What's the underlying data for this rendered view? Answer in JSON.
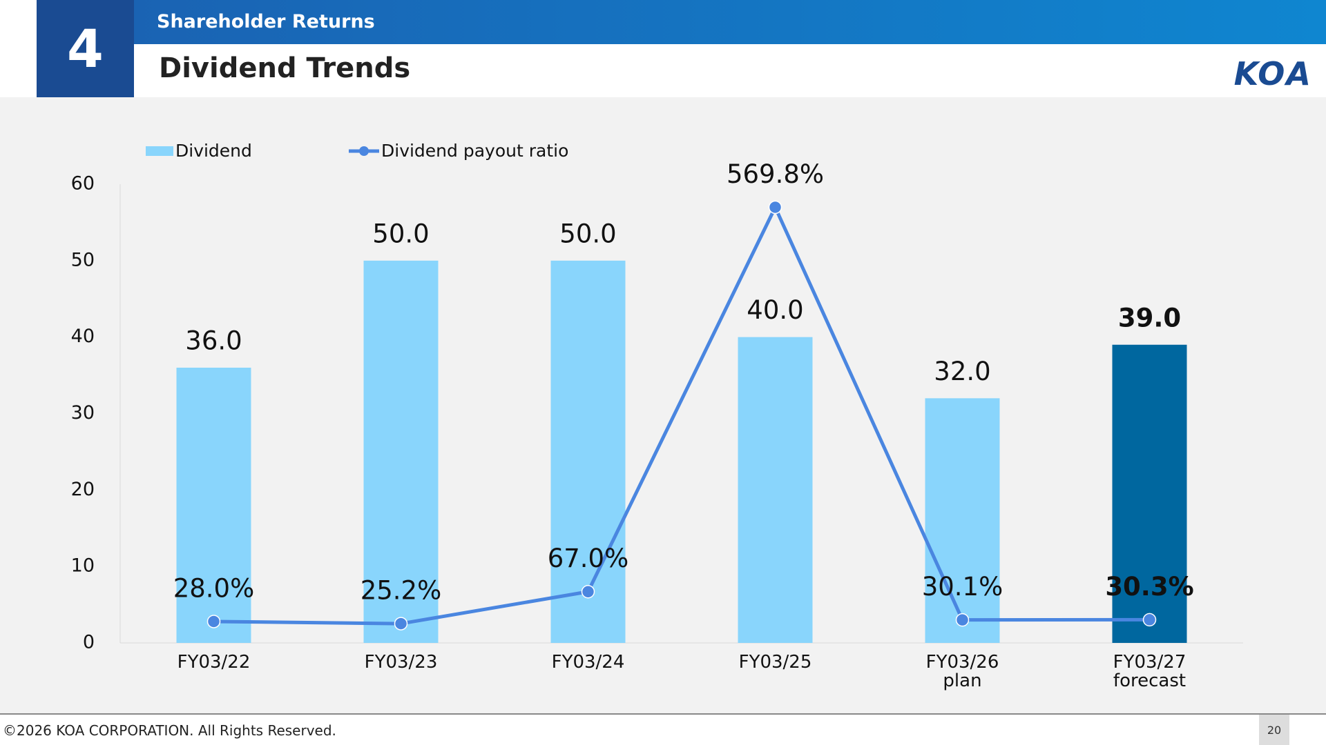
{
  "header": {
    "number": "4",
    "section": "Shareholder Returns",
    "title": "Dividend Trends",
    "logo": "KOA"
  },
  "footer": {
    "copyright": "©2026 KOA CORPORATION. All Rights Reserved.",
    "page": "20"
  },
  "chart_data": {
    "type": "bar-line",
    "categories": [
      "FY03/22",
      "FY03/23",
      "FY03/24",
      "FY03/25",
      "FY03/26\nplan",
      "FY03/27\nforecast"
    ],
    "series": [
      {
        "name": "Dividend",
        "type": "bar",
        "color": "#89d5fc",
        "colors": [
          "#89d5fc",
          "#89d5fc",
          "#89d5fc",
          "#89d5fc",
          "#89d5fc",
          "#00679f"
        ],
        "values": [
          36.0,
          50.0,
          50.0,
          40.0,
          32.0,
          39.0
        ],
        "value_labels": [
          "36.0",
          "50.0",
          "50.0",
          "40.0",
          "32.0",
          "39.0"
        ]
      },
      {
        "name": "Dividend payout ratio",
        "type": "line",
        "axis": "y2",
        "color": "#4a86e0",
        "values": [
          28.0,
          25.2,
          67.0,
          569.8,
          30.1,
          30.3
        ],
        "value_labels": [
          "28.0%",
          "25.2%",
          "67.0%",
          "569.8%",
          "30.1%",
          "30.3%"
        ]
      }
    ],
    "ylim": [
      0,
      60
    ],
    "yticks": [
      0,
      10,
      20,
      30,
      40,
      50,
      60
    ],
    "y2lim": [
      0,
      600
    ],
    "grid": false
  }
}
